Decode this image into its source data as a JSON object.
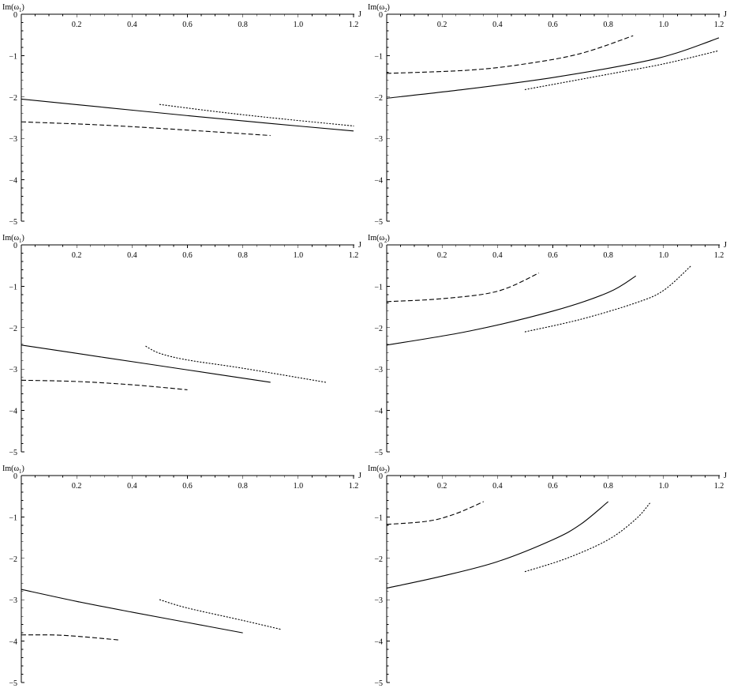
{
  "colors": {
    "line": "#000000",
    "background": "#ffffff"
  },
  "chart_data": [
    {
      "type": "line",
      "ylabel": "Im(ω1)",
      "ylabel_main": "Im(ω",
      "ylabel_sub": "1",
      "ylabel_close": ")",
      "xlabel": "J",
      "xlim": [
        0,
        1.2
      ],
      "ylim": [
        -5,
        0
      ],
      "xticks": [
        "0.2",
        "0.4",
        "0.6",
        "0.8",
        "1.0",
        "1.2"
      ],
      "yticks": [
        "0",
        "−1",
        "−2",
        "−3",
        "−4",
        "−5"
      ],
      "grid": false,
      "series": [
        {
          "style": "solid",
          "points": [
            [
              0,
              -2.05
            ],
            [
              0.3,
              -2.25
            ],
            [
              0.6,
              -2.45
            ],
            [
              0.9,
              -2.64
            ],
            [
              1.2,
              -2.82
            ]
          ]
        },
        {
          "style": "dashed",
          "points": [
            [
              0,
              -2.6
            ],
            [
              0.3,
              -2.68
            ],
            [
              0.6,
              -2.8
            ],
            [
              0.9,
              -2.93
            ]
          ]
        },
        {
          "style": "dotted",
          "points": [
            [
              0.5,
              -2.18
            ],
            [
              0.7,
              -2.35
            ],
            [
              0.9,
              -2.5
            ],
            [
              1.2,
              -2.7
            ]
          ]
        }
      ]
    },
    {
      "type": "line",
      "ylabel": "Im(ω2)",
      "ylabel_main": "Im(ω",
      "ylabel_sub": "2",
      "ylabel_close": ")",
      "xlabel": "J",
      "xlim": [
        0,
        1.2
      ],
      "ylim": [
        -5,
        0
      ],
      "xticks": [
        "0.2",
        "0.4",
        "0.6",
        "0.8",
        "1.0",
        "1.2"
      ],
      "yticks": [
        "0",
        "−1",
        "−2",
        "−3",
        "−4",
        "−5"
      ],
      "grid": false,
      "series": [
        {
          "style": "solid",
          "points": [
            [
              0,
              -2.03
            ],
            [
              0.3,
              -1.8
            ],
            [
              0.6,
              -1.53
            ],
            [
              0.9,
              -1.18
            ],
            [
              1.05,
              -0.93
            ],
            [
              1.2,
              -0.57
            ]
          ]
        },
        {
          "style": "dashed",
          "points": [
            [
              0,
              -1.43
            ],
            [
              0.3,
              -1.35
            ],
            [
              0.5,
              -1.2
            ],
            [
              0.7,
              -0.95
            ],
            [
              0.89,
              -0.52
            ]
          ]
        },
        {
          "style": "dotted",
          "points": [
            [
              0.5,
              -1.82
            ],
            [
              0.8,
              -1.45
            ],
            [
              1.0,
              -1.2
            ],
            [
              1.2,
              -0.88
            ]
          ]
        }
      ]
    },
    {
      "type": "line",
      "ylabel": "Im(ω1)",
      "ylabel_main": "Im(ω",
      "ylabel_sub": "1",
      "ylabel_close": ")",
      "xlabel": "J",
      "xlim": [
        0,
        1.2
      ],
      "ylim": [
        -5,
        0
      ],
      "xticks": [
        "0.2",
        "0.4",
        "0.6",
        "0.8",
        "1.0",
        "1.2"
      ],
      "yticks": [
        "0",
        "−1",
        "−2",
        "−3",
        "−4",
        "−5"
      ],
      "grid": false,
      "series": [
        {
          "style": "solid",
          "points": [
            [
              0,
              -2.42
            ],
            [
              0.3,
              -2.72
            ],
            [
              0.6,
              -3.02
            ],
            [
              0.9,
              -3.32
            ]
          ]
        },
        {
          "style": "dashed",
          "points": [
            [
              0,
              -3.27
            ],
            [
              0.2,
              -3.3
            ],
            [
              0.4,
              -3.38
            ],
            [
              0.6,
              -3.5
            ]
          ]
        },
        {
          "style": "dotted",
          "points": [
            [
              0.45,
              -2.45
            ],
            [
              0.5,
              -2.62
            ],
            [
              0.6,
              -2.78
            ],
            [
              0.8,
              -2.98
            ],
            [
              1.1,
              -3.32
            ]
          ]
        }
      ]
    },
    {
      "type": "line",
      "ylabel": "Im(ω2)",
      "ylabel_main": "Im(ω",
      "ylabel_sub": "2",
      "ylabel_close": ")",
      "xlabel": "J",
      "xlim": [
        0,
        1.2
      ],
      "ylim": [
        -5,
        0
      ],
      "xticks": [
        "0.2",
        "0.4",
        "0.6",
        "0.8",
        "1.0",
        "1.2"
      ],
      "yticks": [
        "0",
        "−1",
        "−2",
        "−3",
        "−4",
        "−5"
      ],
      "grid": false,
      "series": [
        {
          "style": "solid",
          "points": [
            [
              0,
              -2.42
            ],
            [
              0.3,
              -2.08
            ],
            [
              0.6,
              -1.6
            ],
            [
              0.8,
              -1.15
            ],
            [
              0.9,
              -0.75
            ]
          ]
        },
        {
          "style": "dashed",
          "points": [
            [
              0,
              -1.37
            ],
            [
              0.2,
              -1.3
            ],
            [
              0.4,
              -1.12
            ],
            [
              0.55,
              -0.68
            ]
          ]
        },
        {
          "style": "dotted",
          "points": [
            [
              0.5,
              -2.1
            ],
            [
              0.7,
              -1.8
            ],
            [
              0.9,
              -1.4
            ],
            [
              1.0,
              -1.1
            ],
            [
              1.1,
              -0.5
            ]
          ]
        }
      ]
    },
    {
      "type": "line",
      "ylabel": "Im(ω1)",
      "ylabel_main": "Im(ω",
      "ylabel_sub": "1",
      "ylabel_close": ")",
      "xlabel": "J",
      "xlim": [
        0,
        1.2
      ],
      "ylim": [
        -5,
        0
      ],
      "xticks": [
        "0.2",
        "0.4",
        "0.6",
        "0.8",
        "1.0",
        "1.2"
      ],
      "yticks": [
        "0",
        "−1",
        "−2",
        "−3",
        "−4",
        "−5"
      ],
      "grid": false,
      "series": [
        {
          "style": "solid",
          "points": [
            [
              0,
              -2.75
            ],
            [
              0.2,
              -3.04
            ],
            [
              0.4,
              -3.3
            ],
            [
              0.6,
              -3.55
            ],
            [
              0.8,
              -3.8
            ]
          ]
        },
        {
          "style": "dashed",
          "points": [
            [
              0,
              -3.85
            ],
            [
              0.15,
              -3.86
            ],
            [
              0.35,
              -3.97
            ]
          ]
        },
        {
          "style": "dotted",
          "points": [
            [
              0.5,
              -3.0
            ],
            [
              0.6,
              -3.2
            ],
            [
              0.8,
              -3.5
            ],
            [
              0.94,
              -3.72
            ]
          ]
        }
      ]
    },
    {
      "type": "line",
      "ylabel": "Im(ω2)",
      "ylabel_main": "Im(ω",
      "ylabel_sub": "2",
      "ylabel_close": ")",
      "xlabel": "J",
      "xlim": [
        0,
        1.2
      ],
      "ylim": [
        -5,
        0
      ],
      "xticks": [
        "0.2",
        "0.4",
        "0.6",
        "0.8",
        "1.0",
        "1.2"
      ],
      "yticks": [
        "0",
        "−1",
        "−2",
        "−3",
        "−4",
        "−5"
      ],
      "grid": false,
      "series": [
        {
          "style": "solid",
          "points": [
            [
              0,
              -2.72
            ],
            [
              0.2,
              -2.43
            ],
            [
              0.4,
              -2.08
            ],
            [
              0.6,
              -1.55
            ],
            [
              0.7,
              -1.18
            ],
            [
              0.8,
              -0.63
            ]
          ]
        },
        {
          "style": "dashed",
          "points": [
            [
              0,
              -1.18
            ],
            [
              0.15,
              -1.1
            ],
            [
              0.25,
              -0.92
            ],
            [
              0.35,
              -0.63
            ]
          ]
        },
        {
          "style": "dotted",
          "points": [
            [
              0.5,
              -2.32
            ],
            [
              0.65,
              -2.0
            ],
            [
              0.8,
              -1.55
            ],
            [
              0.9,
              -1.05
            ],
            [
              0.95,
              -0.67
            ]
          ]
        }
      ]
    }
  ]
}
